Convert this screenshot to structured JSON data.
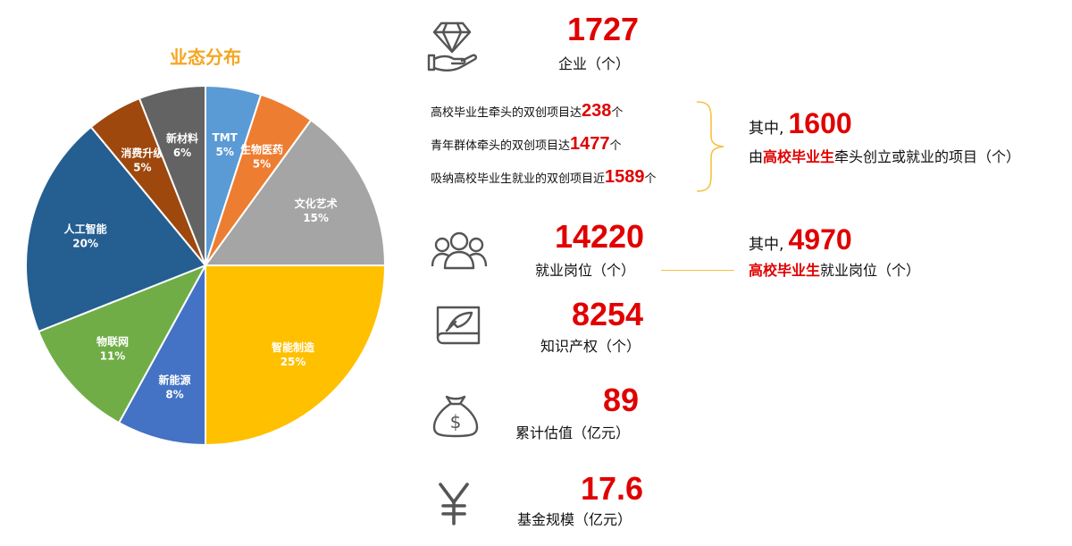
{
  "chart_data": {
    "type": "pie",
    "title": "业态分布",
    "slices": [
      {
        "name": "TMT",
        "label": "5%",
        "value": 5,
        "color": "#5b9bd5"
      },
      {
        "name": "生物医药",
        "label": "5%",
        "value": 5,
        "color": "#ed7d31"
      },
      {
        "name": "文化艺术",
        "label": "15%",
        "value": 15,
        "color": "#a5a5a5"
      },
      {
        "name": "智能制造",
        "label": "25%",
        "value": 25,
        "color": "#ffc000"
      },
      {
        "name": "新能源",
        "label": "8%",
        "value": 8,
        "color": "#4472c4"
      },
      {
        "name": "物联网",
        "label": "11%",
        "value": 11,
        "color": "#70ad47"
      },
      {
        "name": "人工智能",
        "label": "20%",
        "value": 20,
        "color": "#255e91"
      },
      {
        "name": "消费升级",
        "label": "5%",
        "value": 5,
        "color": "#9e480e"
      },
      {
        "name": "新材料",
        "label": "6%",
        "value": 6,
        "color": "#636363"
      }
    ]
  },
  "stats": {
    "enterprises": {
      "value": "1727",
      "caption": "企业（个）",
      "icon": "diamond-hand-icon"
    },
    "projects": {
      "lines": [
        {
          "prefix": "高校毕业生牵头的双创项目达",
          "num": "238",
          "suffix": "个"
        },
        {
          "prefix": "青年群体牵头的双创项目达",
          "num": "1477",
          "suffix": "个"
        },
        {
          "prefix": "吸纳高校毕业生就业的双创项目近",
          "num": "1589",
          "suffix": "个"
        }
      ],
      "among_prefix": "其中,",
      "among_value": "1600",
      "among_caption_highlight": "高校毕业生",
      "among_caption_pre": "由",
      "among_caption_post": "牵头创立或就业的项目（个）"
    },
    "jobs": {
      "value": "14220",
      "caption": "就业岗位（个）",
      "icon": "people-group-icon",
      "among_prefix": "其中,",
      "among_value": "4970",
      "among_caption_highlight": "高校毕业生",
      "among_caption_post": "就业岗位（个）"
    },
    "ip": {
      "value": "8254",
      "caption": "知识产权（个）",
      "icon": "document-quill-icon"
    },
    "valuation": {
      "value": "89",
      "caption": "累计估值（亿元）",
      "icon": "money-bag-icon"
    },
    "fund": {
      "value": "17.6",
      "caption": "基金规模（亿元）",
      "icon": "yen-icon"
    }
  }
}
